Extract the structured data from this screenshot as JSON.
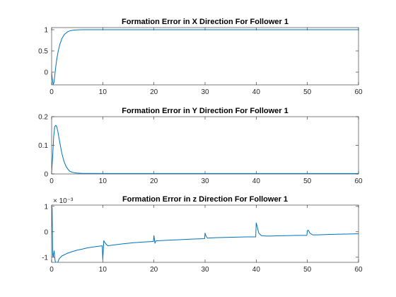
{
  "figure": {
    "background": "#ffffff",
    "line_color": "#0072bd"
  },
  "chart_data": [
    {
      "type": "line",
      "title": "Formation Error in X Direction For Follower 1",
      "xlabel": "",
      "ylabel": "",
      "xlim": [
        0,
        60
      ],
      "ylim": [
        -0.3,
        1.05
      ],
      "xticks": [
        0,
        10,
        20,
        30,
        40,
        50,
        60
      ],
      "xticklabels": [
        "0",
        "10",
        "20",
        "30",
        "40",
        "50",
        "60"
      ],
      "yticks": [
        0,
        0.5,
        1
      ],
      "yticklabels": [
        "0",
        "0.5",
        "1"
      ],
      "exponent_label": "",
      "grid": false,
      "series": [
        {
          "x": [
            0,
            0.15,
            0.3,
            0.45,
            0.6,
            0.8,
            1.0,
            1.3,
            1.6,
            2.0,
            2.5,
            3.0,
            3.5,
            4.0,
            4.5,
            5.0,
            6.0,
            7.0,
            8.0,
            10,
            15,
            20,
            30,
            40,
            50,
            60
          ],
          "y": [
            0,
            -0.18,
            -0.29,
            -0.25,
            -0.1,
            0.12,
            0.3,
            0.5,
            0.65,
            0.79,
            0.89,
            0.94,
            0.97,
            0.985,
            0.992,
            0.996,
            0.999,
            1.0,
            1.0,
            1.0,
            1.0,
            1.0,
            1.0,
            1.0,
            1.0,
            1.0
          ]
        }
      ]
    },
    {
      "type": "line",
      "title": "Formation Error in Y Direction For Follower 1",
      "xlabel": "",
      "ylabel": "",
      "xlim": [
        0,
        60
      ],
      "ylim": [
        0,
        0.2
      ],
      "xticks": [
        0,
        10,
        20,
        30,
        40,
        50,
        60
      ],
      "xticklabels": [
        "0",
        "10",
        "20",
        "30",
        "40",
        "50",
        "60"
      ],
      "yticks": [
        0,
        0.1,
        0.2
      ],
      "yticklabels": [
        "0",
        "0.1",
        "0.2"
      ],
      "exponent_label": "",
      "grid": false,
      "series": [
        {
          "x": [
            0,
            0.2,
            0.4,
            0.6,
            0.8,
            1.0,
            1.2,
            1.4,
            1.7,
            2.0,
            2.4,
            2.8,
            3.2,
            3.6,
            4.0,
            4.5,
            5.0,
            6.0,
            7.0,
            8.0,
            10,
            15,
            20,
            30,
            40,
            50,
            60
          ],
          "y": [
            0.005,
            0.06,
            0.13,
            0.165,
            0.17,
            0.165,
            0.15,
            0.13,
            0.1,
            0.072,
            0.045,
            0.027,
            0.016,
            0.009,
            0.006,
            0.004,
            0.003,
            0.002,
            0.0018,
            0.0017,
            0.0016,
            0.0016,
            0.0015,
            0.0015,
            0.0015,
            0.0015,
            0.0015
          ]
        }
      ]
    },
    {
      "type": "line",
      "title": "Formation Error in z Direction For Follower 1",
      "xlabel": "",
      "ylabel": "",
      "xlim": [
        0,
        60
      ],
      "ylim": [
        -1.2,
        1.05
      ],
      "xticks": [
        0,
        10,
        20,
        30,
        40,
        50,
        60
      ],
      "xticklabels": [
        "0",
        "10",
        "20",
        "30",
        "40",
        "50",
        "60"
      ],
      "yticks": [
        -1,
        0,
        1
      ],
      "yticklabels": [
        "-1",
        "0",
        "1"
      ],
      "exponent_label": "× 10⁻³",
      "grid": false,
      "series": [
        {
          "x": [
            0,
            0.1,
            0.2,
            0.3,
            0.4,
            0.5,
            0.6,
            0.7,
            0.8,
            0.9,
            1.0,
            1.2,
            1.5,
            2.0,
            3,
            4,
            5,
            6,
            7,
            8,
            9,
            9.9,
            10.0,
            10.2,
            10.5,
            11,
            12,
            14,
            16,
            18,
            19.9,
            20.0,
            20.2,
            20.4,
            21,
            23,
            25,
            27,
            29.9,
            30.0,
            30.2,
            30.5,
            31,
            32,
            34,
            36,
            38,
            39.9,
            40.0,
            40.2,
            40.5,
            41,
            42,
            44,
            46,
            48,
            49.9,
            50.0,
            50.2,
            50.5,
            51,
            52,
            55,
            60
          ],
          "y": [
            0.2,
            0.95,
            -0.9,
            -1.0,
            -0.85,
            -0.75,
            -1.0,
            -1.15,
            -1.2,
            -1.25,
            -1.25,
            -1.2,
            -1.05,
            -0.95,
            -0.85,
            -0.78,
            -0.72,
            -0.68,
            -0.63,
            -0.6,
            -0.57,
            -0.55,
            -1.1,
            -0.35,
            -0.45,
            -0.55,
            -0.52,
            -0.47,
            -0.43,
            -0.4,
            -0.38,
            -0.15,
            -0.45,
            -0.35,
            -0.35,
            -0.33,
            -0.31,
            -0.29,
            -0.27,
            -0.05,
            -0.18,
            -0.25,
            -0.24,
            -0.23,
            -0.22,
            -0.21,
            -0.2,
            -0.2,
            0.35,
            0.2,
            -0.05,
            -0.15,
            -0.17,
            -0.16,
            -0.15,
            -0.14,
            -0.14,
            0.05,
            0.06,
            -0.05,
            -0.12,
            -0.12,
            -0.1,
            -0.08
          ]
        }
      ]
    }
  ]
}
